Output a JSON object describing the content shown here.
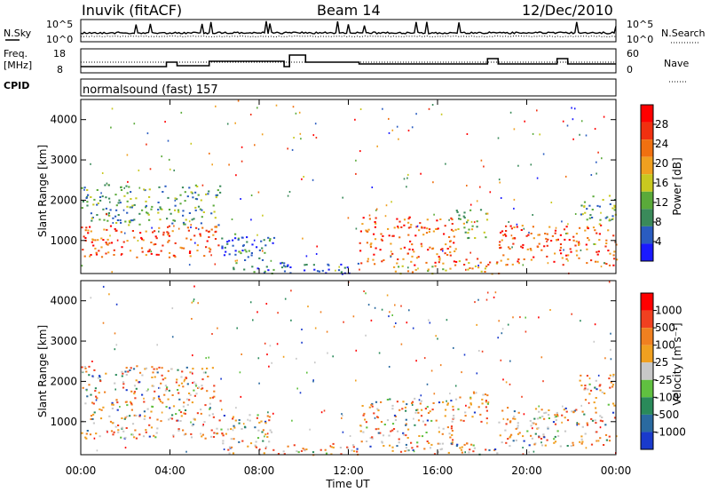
{
  "header": {
    "station": "Inuvik  (fitACF)",
    "beam": "Beam 14",
    "date": "12/Dec/2010"
  },
  "noise_panel": {
    "left_label": "N.Sky",
    "right_label": "N.Search",
    "ticks_left": [
      "10^5",
      "10^0"
    ],
    "ticks_right": [
      "10^5",
      "10^0"
    ]
  },
  "freq_panel": {
    "left_label_1": "Freq.",
    "left_label_2": "[MHz]",
    "right_label": "Nave",
    "ticks_left": [
      "18",
      "8"
    ],
    "ticks_right": [
      "60",
      "0"
    ]
  },
  "cpid": {
    "label": "CPID",
    "value": "normalsound (fast) 157"
  },
  "chart_data": [
    {
      "type": "heatmap",
      "name": "power",
      "ylabel": "Slant Range [km]",
      "xlabel": "",
      "ylim": [
        180,
        4500
      ],
      "yticks": [
        "1000",
        "2000",
        "3000",
        "4000"
      ],
      "colorbar_label": "Power [dB]",
      "colorbar_ticks": [
        "28",
        "24",
        "20",
        "16",
        "12",
        "8",
        "4"
      ],
      "colors": [
        "#1a1aff",
        "#2a5cc0",
        "#3a8a5a",
        "#5aaa3a",
        "#c8c820",
        "#f0a020",
        "#f07010",
        "#f03010",
        "#ff0000"
      ]
    },
    {
      "type": "heatmap",
      "name": "velocity",
      "ylabel": "Slant Range [km]",
      "xlabel": "Time UT",
      "ylim": [
        180,
        4500
      ],
      "yticks": [
        "1000",
        "2000",
        "3000",
        "4000"
      ],
      "xticks": [
        "00:00",
        "04:00",
        "08:00",
        "12:00",
        "16:00",
        "20:00",
        "00:00"
      ],
      "colorbar_label": "Velocity  [m s⁻¹]",
      "colorbar_ticks": [
        "1000",
        "500",
        "100",
        "25",
        "-25",
        "-100",
        "-500",
        "-1000"
      ],
      "colors": [
        "#1a3acc",
        "#2a6aa0",
        "#2a8a5a",
        "#60c040",
        "#c8c8c8",
        "#f0a020",
        "#f08020",
        "#f04020",
        "#ff0000"
      ]
    }
  ]
}
